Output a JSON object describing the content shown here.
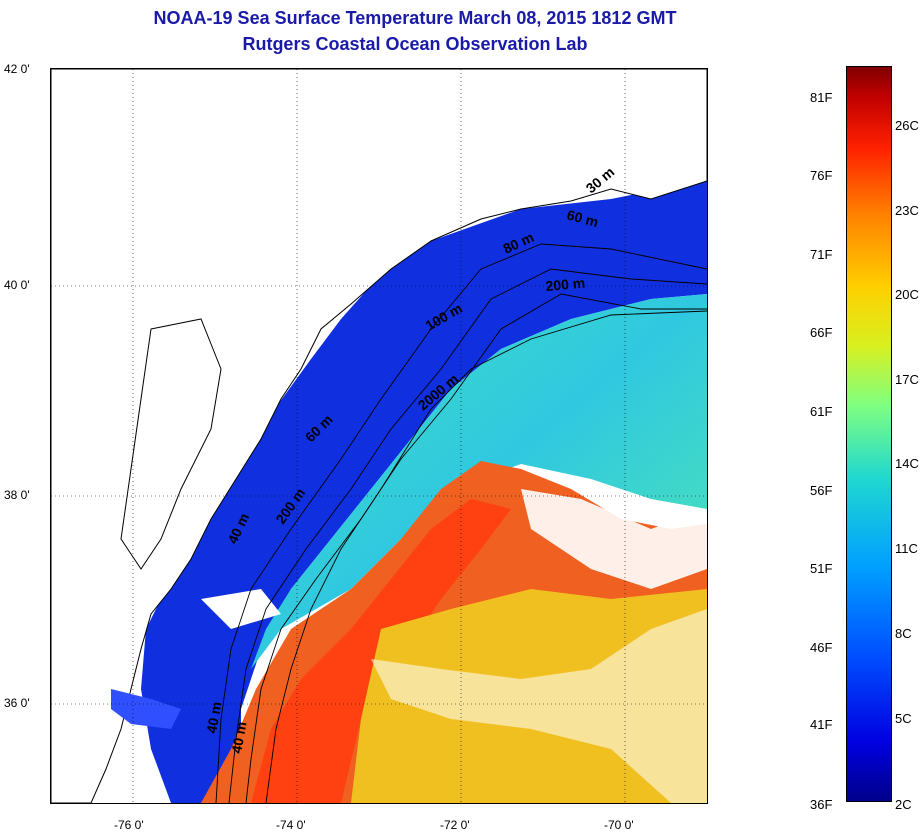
{
  "title_line1": "NOAA-19 Sea Surface Temperature March 08, 2015 1812 GMT",
  "title_line2": "Rutgers Coastal Ocean Observation Lab",
  "y_ticks": [
    {
      "label": "42 0'",
      "lat": 42
    },
    {
      "label": "40 0'",
      "lat": 40
    },
    {
      "label": "38 0'",
      "lat": 38
    },
    {
      "label": "36 0'",
      "lat": 36
    }
  ],
  "x_ticks": [
    {
      "label": "-76 0'",
      "lon": -76
    },
    {
      "label": "-74 0'",
      "lon": -74
    },
    {
      "label": "-72 0'",
      "lon": -72
    },
    {
      "label": "-70 0'",
      "lon": -70
    }
  ],
  "contour_labels": [
    "30 m",
    "60 m",
    "80 m",
    "200 m",
    "100 m",
    "2000 m",
    "60 m",
    "200 m",
    "40 m",
    "40 m",
    "40 m"
  ],
  "colorbar": {
    "fahrenheit": [
      "81F",
      "76F",
      "71F",
      "66F",
      "61F",
      "56F",
      "51F",
      "46F",
      "41F",
      "36F"
    ],
    "celsius": [
      "26C",
      "23C",
      "20C",
      "17C",
      "14C",
      "11C",
      "8C",
      "5C",
      "2C"
    ],
    "colors": [
      "#00008b",
      "#0000e0",
      "#0050ff",
      "#00a0ff",
      "#20d8d0",
      "#80ff80",
      "#d8f020",
      "#ffd000",
      "#ff8000",
      "#ff2000",
      "#c00000",
      "#800000"
    ]
  }
}
